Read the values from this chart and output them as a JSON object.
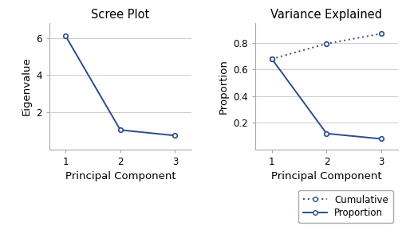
{
  "scree_title": "Scree Plot",
  "variance_title": "Variance Explained",
  "xlabel": "Principal Component",
  "scree_ylabel": "Eigenvalue",
  "variance_ylabel": "Proportion",
  "components": [
    1,
    2,
    3
  ],
  "eigenvalues": [
    6.1,
    1.05,
    0.75
  ],
  "proportion": [
    0.68,
    0.12,
    0.08
  ],
  "cumulative": [
    0.68,
    0.795,
    0.87
  ],
  "scree_ylim": [
    0,
    6.8
  ],
  "scree_yticks": [
    2,
    4,
    6
  ],
  "variance_ylim": [
    0,
    0.95
  ],
  "variance_yticks": [
    0.2,
    0.4,
    0.6,
    0.8
  ],
  "line_color": "#2B4C8C",
  "bg_color": "#FFFFFF",
  "plot_bg": "#FFFFFF",
  "legend_labels": [
    "Cumulative",
    "Proportion"
  ],
  "title_fontsize": 10.5,
  "label_fontsize": 9.5,
  "tick_fontsize": 8.5,
  "legend_fontsize": 8.5
}
